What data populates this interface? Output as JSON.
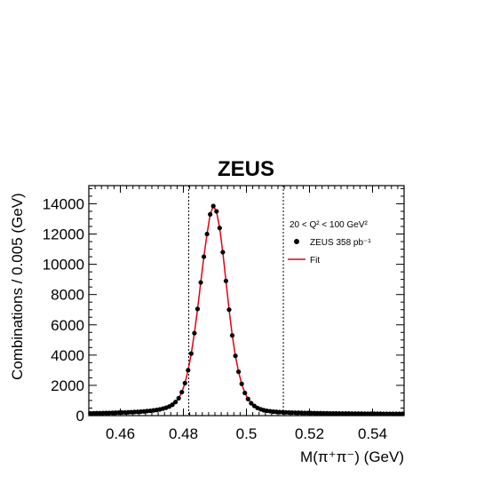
{
  "chart_data": {
    "type": "scatter",
    "title": "ZEUS",
    "xlabel": "M(π⁺π⁻) (GeV)",
    "ylabel": "Combinations / 0.005 (GeV)",
    "xlim": [
      0.45,
      0.55
    ],
    "ylim": [
      0,
      15200
    ],
    "xticks": [
      0.46,
      0.48,
      0.5,
      0.52,
      0.54
    ],
    "xtick_labels": [
      "0.46",
      "0.48",
      "0.5",
      "0.52",
      "0.54"
    ],
    "yticks": [
      0,
      2000,
      4000,
      6000,
      8000,
      10000,
      12000,
      14000
    ],
    "ytick_labels": [
      "0",
      "2000",
      "4000",
      "6000",
      "8000",
      "10000",
      "12000",
      "14000"
    ],
    "annotation": "20 < Q² < 100 GeV²",
    "vertical_lines": [
      0.4817,
      0.5117
    ],
    "series": [
      {
        "name": "ZEUS 358 pb⁻¹",
        "kind": "points",
        "color": "#000000",
        "x": [
          0.4505,
          0.4515,
          0.4525,
          0.4535,
          0.4545,
          0.4555,
          0.4565,
          0.4575,
          0.4585,
          0.4595,
          0.4605,
          0.4615,
          0.4625,
          0.4635,
          0.4645,
          0.4655,
          0.4665,
          0.4675,
          0.4685,
          0.4695,
          0.4705,
          0.4715,
          0.4725,
          0.4735,
          0.4745,
          0.4755,
          0.4765,
          0.4775,
          0.4785,
          0.4795,
          0.4805,
          0.4815,
          0.4825,
          0.4835,
          0.4845,
          0.4855,
          0.4865,
          0.4875,
          0.4885,
          0.4895,
          0.4905,
          0.4915,
          0.4925,
          0.4935,
          0.4945,
          0.4955,
          0.4965,
          0.4975,
          0.4985,
          0.4995,
          0.5005,
          0.5015,
          0.5025,
          0.5035,
          0.5045,
          0.5055,
          0.5065,
          0.5075,
          0.5085,
          0.5095,
          0.5105,
          0.5115,
          0.5125,
          0.5135,
          0.5145,
          0.5155,
          0.5165,
          0.5175,
          0.5185,
          0.5195,
          0.5205,
          0.5215,
          0.5225,
          0.5235,
          0.5245,
          0.5255,
          0.5265,
          0.5275,
          0.5285,
          0.5295,
          0.5305,
          0.5315,
          0.5325,
          0.5335,
          0.5345,
          0.5355,
          0.5365,
          0.5375,
          0.5385,
          0.5395,
          0.5405,
          0.5415,
          0.5425,
          0.5435,
          0.5445,
          0.5455,
          0.5465,
          0.5475,
          0.5485,
          0.5495
        ],
        "y": [
          150,
          155,
          160,
          165,
          170,
          175,
          180,
          185,
          190,
          200,
          205,
          210,
          220,
          230,
          240,
          250,
          265,
          280,
          300,
          320,
          345,
          375,
          410,
          460,
          520,
          600,
          720,
          900,
          1150,
          1550,
          2150,
          3000,
          4100,
          5450,
          7050,
          8800,
          10500,
          12000,
          13300,
          13850,
          13500,
          12400,
          10800,
          8900,
          7000,
          5300,
          3950,
          2900,
          2100,
          1500,
          1100,
          820,
          640,
          510,
          420,
          360,
          320,
          290,
          265,
          250,
          235,
          225,
          215,
          205,
          200,
          195,
          190,
          185,
          180,
          176,
          172,
          168,
          164,
          160,
          157,
          154,
          151,
          148,
          146,
          144,
          142,
          140,
          138,
          136,
          134,
          132,
          130,
          128,
          127,
          126,
          125,
          124,
          123,
          122,
          121,
          120,
          119,
          118,
          117,
          116
        ]
      },
      {
        "name": "Fit",
        "kind": "line",
        "color": "#e3000f"
      }
    ]
  }
}
